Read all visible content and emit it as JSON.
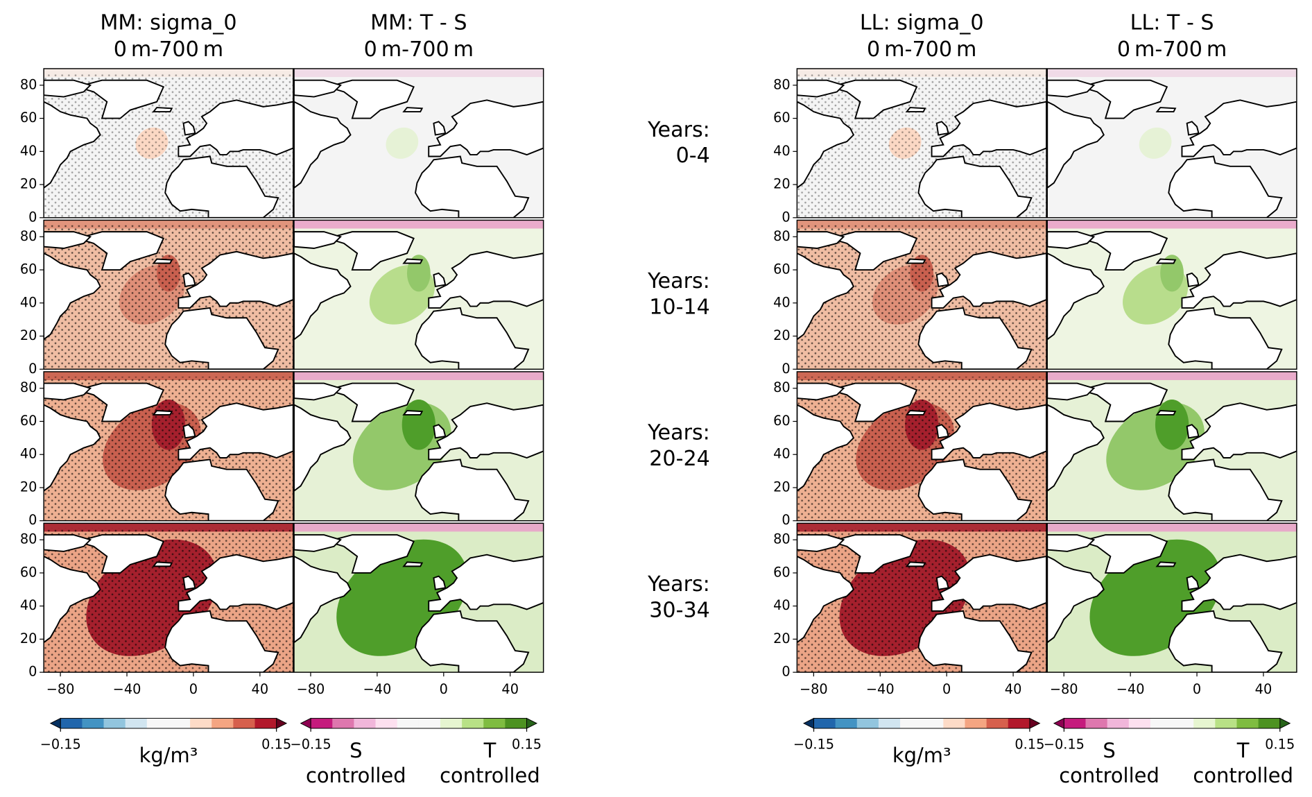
{
  "columns": [
    {
      "title": "MM: sigma_0",
      "subtitle": "0 m-700 m",
      "kind": "sigma",
      "colorbar": {
        "colors": [
          "#2166ac",
          "#4393c3",
          "#92c5de",
          "#d1e5f0",
          "#f7f7f7",
          "#f7f7f7",
          "#fddbc7",
          "#f4a582",
          "#d6604d",
          "#b2182b"
        ],
        "under": "#053061",
        "over": "#67001f",
        "lim": [
          -0.15,
          0.15
        ],
        "ticks": [
          {
            "value": -0.15,
            "label": "−0.15"
          },
          0.15
        ],
        "label": "kg/m³"
      }
    },
    {
      "title": "MM: T - S",
      "subtitle": "0 m-700 m",
      "kind": "ts",
      "colorbar": {
        "colors": [
          "#c51b7d",
          "#de77ae",
          "#f1b6da",
          "#fde0ef",
          "#f7f7f7",
          "#f7f7f7",
          "#e6f5d0",
          "#b8e186",
          "#7fbc41",
          "#4d9221"
        ],
        "under": "#8e0152",
        "over": "#276419",
        "lim": [
          -0.15,
          0.15
        ],
        "ticks": [
          {
            "value": -0.15,
            "label": "−0.15"
          },
          0.15
        ],
        "left_label": [
          "S",
          "controlled"
        ],
        "right_label": [
          "T",
          "controlled"
        ]
      }
    },
    {
      "title": "LL: sigma_0",
      "subtitle": "0 m-700 m",
      "kind": "sigma",
      "colorbar": {
        "colors": [
          "#2166ac",
          "#4393c3",
          "#92c5de",
          "#d1e5f0",
          "#f7f7f7",
          "#f7f7f7",
          "#fddbc7",
          "#f4a582",
          "#d6604d",
          "#b2182b"
        ],
        "under": "#053061",
        "over": "#67001f",
        "lim": [
          -0.15,
          0.15
        ],
        "ticks": [
          {
            "value": -0.15,
            "label": "−0.15"
          },
          0.15
        ],
        "label": "kg/m³"
      }
    },
    {
      "title": "LL: T - S",
      "subtitle": "0 m-700 m",
      "kind": "ts",
      "colorbar": {
        "colors": [
          "#c51b7d",
          "#de77ae",
          "#f1b6da",
          "#fde0ef",
          "#f7f7f7",
          "#f7f7f7",
          "#e6f5d0",
          "#b8e186",
          "#7fbc41",
          "#4d9221"
        ],
        "under": "#8e0152",
        "over": "#276419",
        "lim": [
          -0.15,
          0.15
        ],
        "ticks": [
          {
            "value": -0.15,
            "label": "−0.15"
          },
          0.15
        ],
        "left_label": [
          "S",
          "controlled"
        ],
        "right_label": [
          "T",
          "controlled"
        ]
      }
    }
  ],
  "rows": [
    {
      "label": "Years:",
      "years": "0-4"
    },
    {
      "label": "Years:",
      "years": "10-14"
    },
    {
      "label": "Years:",
      "years": "20-24"
    },
    {
      "label": "Years:",
      "years": "30-34"
    }
  ],
  "axes": {
    "xlim": [
      -90,
      60
    ],
    "ylim": [
      0,
      90
    ],
    "xticks": [
      {
        "value": -80,
        "label": "−80"
      },
      {
        "value": -40,
        "label": "−40"
      },
      0,
      40
    ],
    "yticks": [
      0,
      20,
      40,
      60,
      80
    ]
  }
}
